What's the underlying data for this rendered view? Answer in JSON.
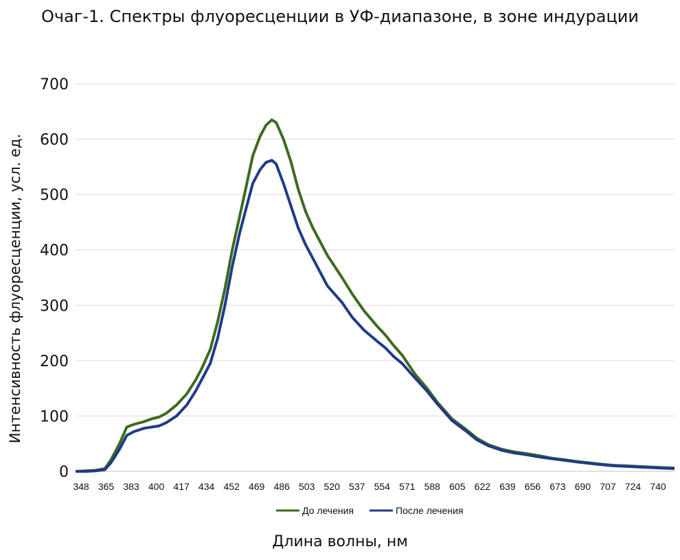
{
  "chart_data": {
    "type": "line",
    "title": "Очаг-1. Спектры флуоресценции в УФ-диапазоне, в зоне индурации",
    "xlabel": "Длина волны, нм",
    "ylabel": "Интенсивность флуоресценции, усл. ед.",
    "ylim": [
      0,
      700
    ],
    "yticks": [
      0,
      100,
      200,
      300,
      400,
      500,
      600,
      700
    ],
    "xlim": [
      348,
      757
    ],
    "xticks": [
      348,
      365,
      383,
      400,
      417,
      434,
      452,
      469,
      486,
      503,
      520,
      537,
      554,
      571,
      588,
      605,
      622,
      639,
      656,
      673,
      690,
      707,
      724,
      740
    ],
    "grid": true,
    "legend": "bottom",
    "series": [
      {
        "name": "До лечения",
        "color": "#3d6b1e",
        "x": [
          348,
          355,
          362,
          368,
          372,
          378,
          383,
          388,
          395,
          400,
          405,
          410,
          417,
          424,
          430,
          434,
          440,
          445,
          450,
          455,
          460,
          465,
          469,
          474,
          478,
          482,
          485,
          490,
          495,
          500,
          505,
          510,
          515,
          520,
          530,
          537,
          545,
          554,
          560,
          565,
          571,
          580,
          588,
          595,
          605,
          615,
          622,
          630,
          639,
          648,
          656,
          665,
          673,
          682,
          690,
          700,
          707,
          715,
          724,
          732,
          740,
          748,
          757
        ],
        "y": [
          0,
          1,
          2,
          5,
          20,
          50,
          80,
          85,
          90,
          95,
          98,
          105,
          120,
          140,
          165,
          185,
          220,
          270,
          330,
          400,
          460,
          520,
          570,
          605,
          625,
          635,
          630,
          600,
          560,
          510,
          470,
          440,
          415,
          390,
          350,
          320,
          290,
          262,
          245,
          228,
          210,
          175,
          150,
          125,
          95,
          75,
          60,
          48,
          40,
          35,
          32,
          28,
          24,
          21,
          18,
          15,
          13,
          11,
          10,
          9,
          8,
          7,
          6
        ]
      },
      {
        "name": "После лечения",
        "color": "#1f3a8a",
        "x": [
          348,
          355,
          362,
          368,
          372,
          378,
          383,
          388,
          395,
          400,
          405,
          410,
          417,
          424,
          430,
          434,
          440,
          445,
          450,
          455,
          460,
          465,
          469,
          474,
          478,
          482,
          485,
          490,
          495,
          500,
          505,
          510,
          515,
          520,
          530,
          537,
          545,
          554,
          560,
          565,
          571,
          580,
          588,
          595,
          605,
          615,
          622,
          630,
          639,
          648,
          656,
          665,
          673,
          682,
          690,
          700,
          707,
          715,
          724,
          732,
          740,
          748,
          757
        ],
        "y": [
          0,
          0,
          1,
          3,
          15,
          40,
          65,
          72,
          78,
          80,
          82,
          88,
          100,
          120,
          145,
          165,
          195,
          240,
          300,
          370,
          430,
          480,
          520,
          545,
          558,
          562,
          555,
          520,
          480,
          440,
          410,
          385,
          360,
          335,
          305,
          278,
          255,
          235,
          222,
          208,
          195,
          168,
          145,
          122,
          92,
          72,
          57,
          46,
          38,
          33,
          30,
          26,
          23,
          20,
          17,
          14,
          12,
          10,
          9,
          8,
          7,
          6,
          5
        ]
      }
    ]
  }
}
